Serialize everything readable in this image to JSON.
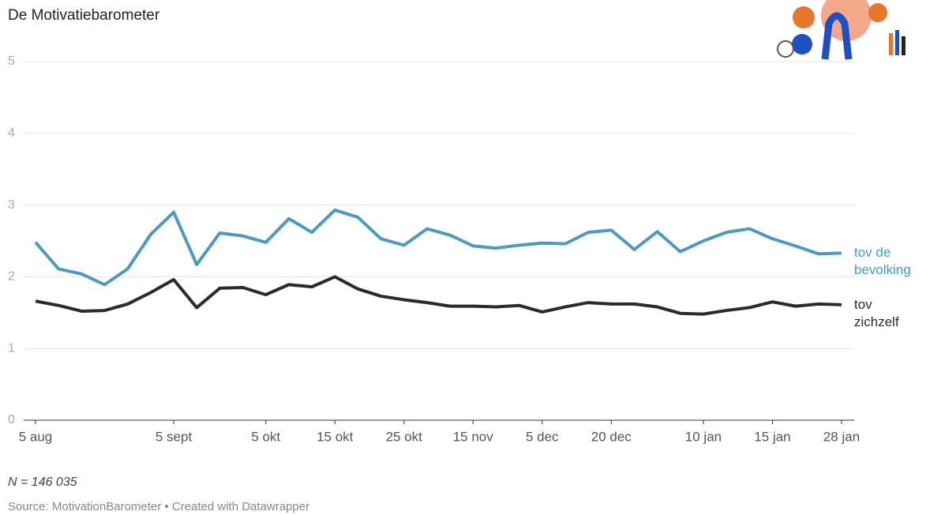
{
  "chart_data": {
    "type": "line",
    "title": "De Motivatiebarometer",
    "categories": [
      "5 aug",
      null,
      null,
      null,
      null,
      null,
      "5 sept",
      null,
      null,
      null,
      "5 okt",
      null,
      null,
      "15 okt",
      null,
      null,
      "25 okt",
      null,
      null,
      "15 nov",
      null,
      null,
      "5 dec",
      null,
      null,
      "20 dec",
      null,
      null,
      null,
      "10 jan",
      null,
      null,
      "15 jan",
      null,
      null,
      "28 jan"
    ],
    "series": [
      {
        "name": "tov de bevolking",
        "color": "#4a9bbf",
        "values": [
          2.48,
          2.11,
          2.04,
          1.89,
          2.11,
          2.59,
          2.9,
          2.17,
          2.61,
          2.57,
          2.48,
          2.81,
          2.62,
          2.93,
          2.83,
          2.53,
          2.44,
          2.67,
          2.58,
          2.43,
          2.4,
          2.44,
          2.47,
          2.46,
          2.62,
          2.65,
          2.38,
          2.63,
          2.35,
          2.5,
          2.62,
          2.67,
          2.53,
          2.43,
          2.32,
          2.33
        ]
      },
      {
        "name": "tov zichzelf",
        "color": "#2b2b2b",
        "values": [
          1.66,
          1.6,
          1.52,
          1.53,
          1.62,
          1.78,
          1.96,
          1.57,
          1.84,
          1.85,
          1.75,
          1.89,
          1.86,
          2.0,
          1.83,
          1.73,
          1.68,
          1.64,
          1.59,
          1.59,
          1.58,
          1.6,
          1.51,
          1.58,
          1.64,
          1.62,
          1.62,
          1.58,
          1.49,
          1.48,
          1.53,
          1.57,
          1.65,
          1.59,
          1.62,
          1.61
        ]
      }
    ],
    "ylim": [
      0,
      5
    ],
    "yticks": [
      0,
      1,
      2,
      3,
      4,
      5
    ],
    "grid": true,
    "note": "N = 146 035",
    "source": "Source: MotivationBarometer • Created with Datawrapper"
  }
}
